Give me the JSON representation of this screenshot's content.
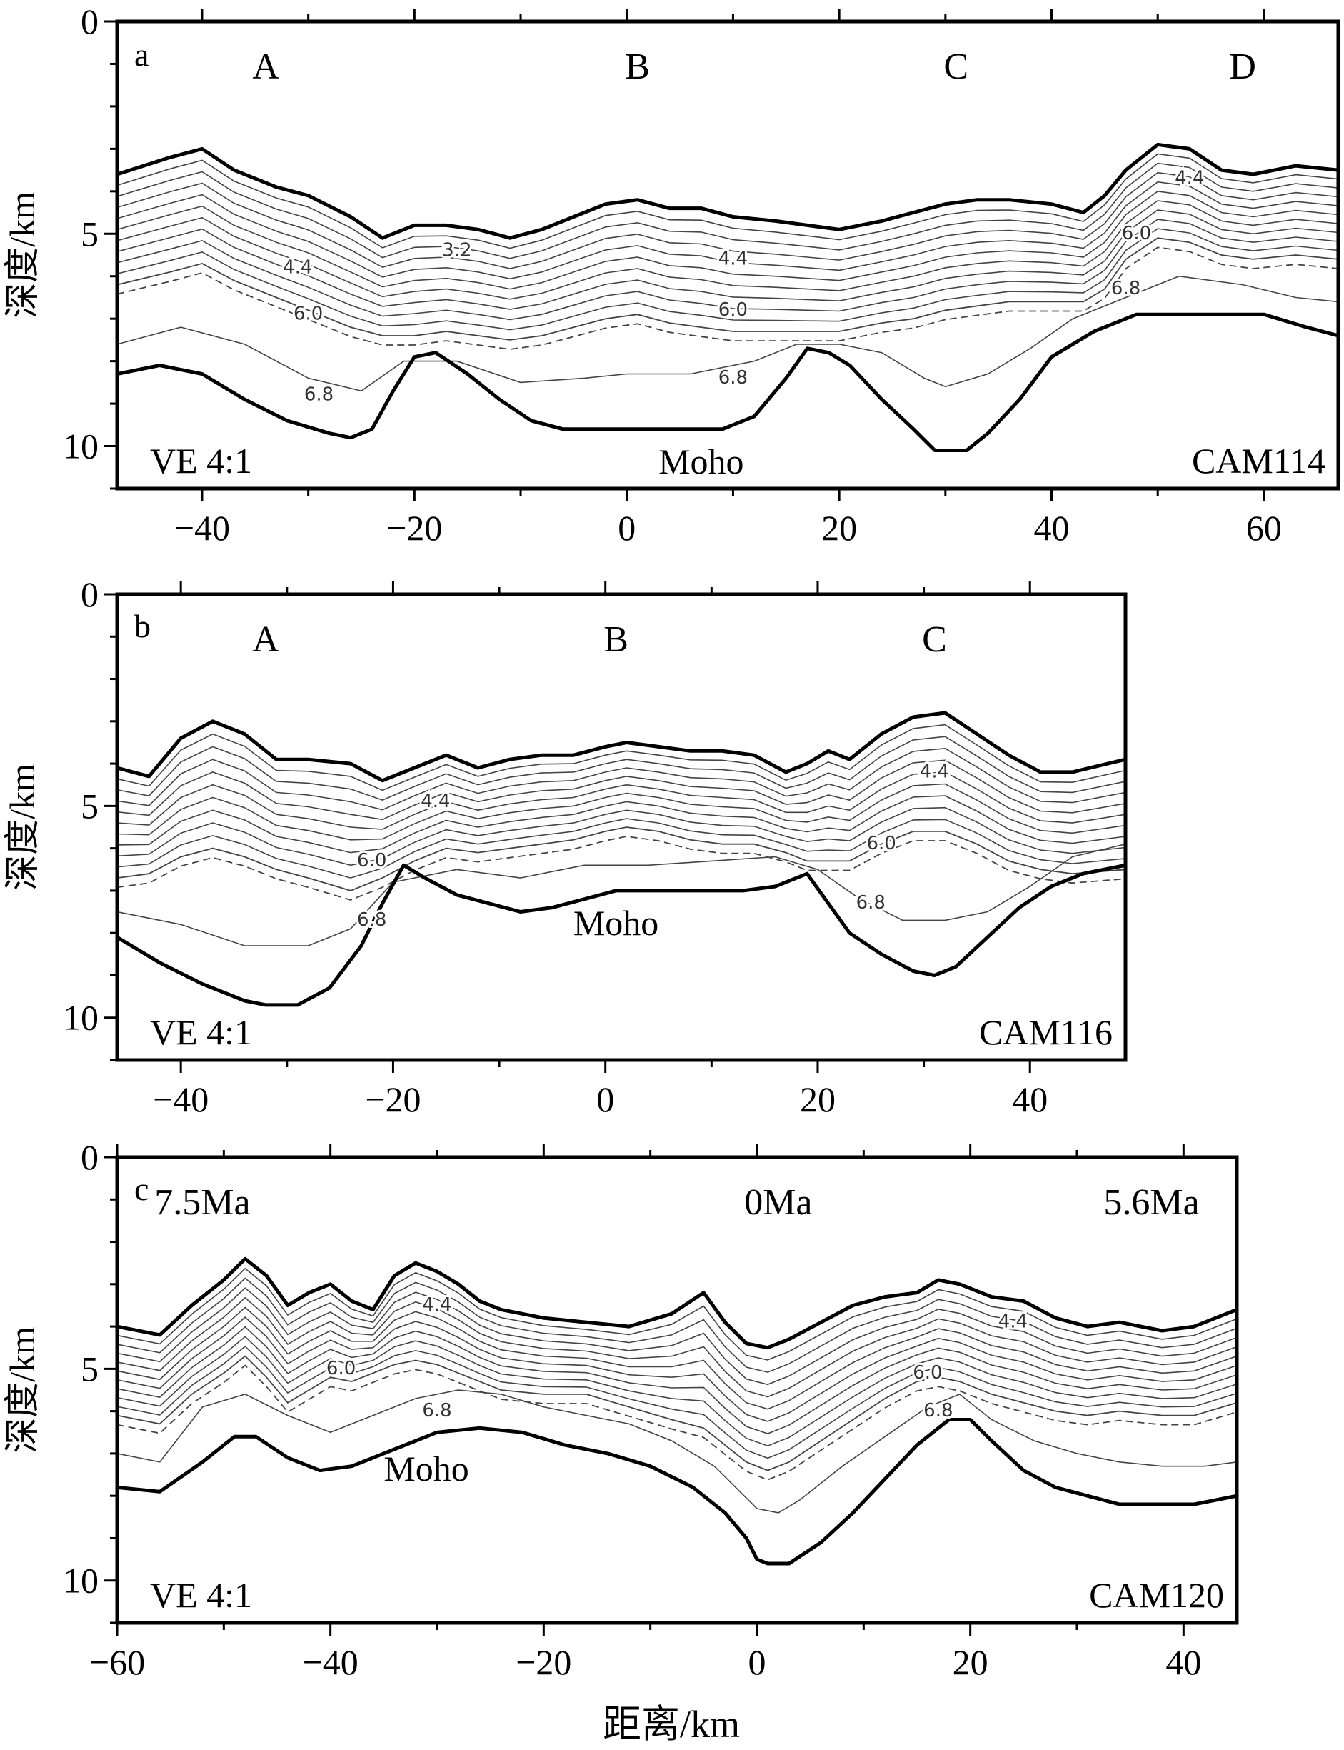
{
  "figure": {
    "ylabel": "深度/km",
    "xlabel": "距离/km"
  },
  "colors": {
    "line": "#000000",
    "contour": "#444444"
  },
  "chart_data": [
    {
      "type": "line",
      "panel": "a",
      "profile": "CAM114",
      "ve_label": "VE 4:1",
      "moho_label": "Moho",
      "xlim": [
        -48,
        67
      ],
      "ylim": [
        0,
        11
      ],
      "y_inverted": true,
      "xticks": [
        -40,
        -20,
        0,
        20,
        40,
        60
      ],
      "yticks": [
        0,
        5,
        10
      ],
      "segment_labels": [
        {
          "text": "A",
          "x": -34
        },
        {
          "text": "B",
          "x": 1
        },
        {
          "text": "C",
          "x": 31
        },
        {
          "text": "D",
          "x": 58
        }
      ],
      "seafloor": {
        "x": [
          -48,
          -43,
          -40,
          -37,
          -33,
          -30,
          -26,
          -23,
          -20,
          -17,
          -14,
          -11,
          -8,
          -5,
          -2,
          1,
          4,
          7,
          10,
          14,
          17,
          20,
          24,
          27,
          30,
          33,
          36,
          40,
          43,
          45,
          47,
          50,
          53,
          56,
          59,
          63,
          67
        ],
        "y": [
          3.6,
          3.2,
          3.0,
          3.5,
          3.9,
          4.1,
          4.6,
          5.1,
          4.8,
          4.8,
          4.9,
          5.1,
          4.9,
          4.6,
          4.3,
          4.2,
          4.4,
          4.4,
          4.6,
          4.7,
          4.8,
          4.9,
          4.7,
          4.5,
          4.3,
          4.2,
          4.2,
          4.3,
          4.5,
          4.1,
          3.5,
          2.9,
          3.0,
          3.5,
          3.6,
          3.4,
          3.5
        ]
      },
      "layer_base": {
        "x": [
          -48,
          -43,
          -40,
          -37,
          -33,
          -30,
          -26,
          -23,
          -20,
          -17,
          -14,
          -11,
          -8,
          -5,
          -2,
          1,
          4,
          7,
          10,
          14,
          17,
          20,
          24,
          27,
          30,
          33,
          36,
          40,
          43,
          45,
          47,
          50,
          53,
          56,
          59,
          63,
          67
        ],
        "y": [
          6.2,
          5.9,
          5.7,
          6.1,
          6.5,
          6.8,
          7.2,
          7.4,
          7.4,
          7.3,
          7.4,
          7.5,
          7.4,
          7.2,
          7.0,
          6.9,
          7.1,
          7.2,
          7.3,
          7.3,
          7.3,
          7.3,
          7.1,
          7.0,
          6.8,
          6.7,
          6.6,
          6.6,
          6.6,
          6.3,
          5.6,
          5.1,
          5.2,
          5.5,
          5.6,
          5.5,
          5.6
        ]
      },
      "contour_6_8": {
        "x": [
          -48,
          -42,
          -36,
          -30,
          -25,
          -21,
          -16,
          -10,
          -4,
          0,
          6,
          12,
          16,
          20,
          24,
          28,
          30,
          34,
          38,
          42,
          46,
          52,
          58,
          63,
          67
        ],
        "y": [
          7.6,
          7.2,
          7.6,
          8.4,
          8.7,
          8.0,
          8.0,
          8.5,
          8.4,
          8.3,
          8.3,
          8.0,
          7.6,
          7.6,
          7.8,
          8.4,
          8.6,
          8.3,
          7.7,
          7.0,
          6.6,
          6.0,
          6.2,
          6.5,
          6.6
        ]
      },
      "moho": {
        "x": [
          -48,
          -44,
          -40,
          -36,
          -32,
          -28,
          -26,
          -24,
          -22,
          -20,
          -18,
          -15,
          -12,
          -9,
          -6,
          -3,
          0,
          3,
          6,
          9,
          12,
          15,
          17,
          19,
          21,
          24,
          27,
          29,
          32,
          34,
          37,
          40,
          44,
          48,
          52,
          56,
          60,
          64,
          67
        ],
        "y": [
          8.3,
          8.1,
          8.3,
          8.9,
          9.4,
          9.7,
          9.8,
          9.6,
          8.7,
          7.9,
          7.8,
          8.3,
          8.9,
          9.4,
          9.6,
          9.6,
          9.6,
          9.6,
          9.6,
          9.6,
          9.3,
          8.4,
          7.7,
          7.8,
          8.1,
          8.9,
          9.6,
          10.1,
          10.1,
          9.7,
          8.9,
          7.9,
          7.3,
          6.9,
          6.9,
          6.9,
          6.9,
          7.2,
          7.4
        ]
      },
      "contour_labels": [
        {
          "text": "3.2",
          "x": -16,
          "y": 5.4
        },
        {
          "text": "4.4",
          "x": -31,
          "y": 5.8
        },
        {
          "text": "4.4",
          "x": 10,
          "y": 5.6
        },
        {
          "text": "4.4",
          "x": 53,
          "y": 3.7
        },
        {
          "text": "6.0",
          "x": -30,
          "y": 6.9
        },
        {
          "text": "6.0",
          "x": 10,
          "y": 6.8
        },
        {
          "text": "6.0",
          "x": 48,
          "y": 5.0
        },
        {
          "text": "6.8",
          "x": -29,
          "y": 8.8
        },
        {
          "text": "6.8",
          "x": 10,
          "y": 8.4
        },
        {
          "text": "6.8",
          "x": 47,
          "y": 6.3
        }
      ]
    },
    {
      "type": "line",
      "panel": "b",
      "profile": "CAM116",
      "ve_label": "VE 4:1",
      "moho_label": "Moho",
      "xlim": [
        -46,
        49
      ],
      "ylim": [
        0,
        11
      ],
      "y_inverted": true,
      "xticks": [
        -40,
        -20,
        0,
        20,
        40
      ],
      "yticks": [
        0,
        5,
        10
      ],
      "segment_labels": [
        {
          "text": "A",
          "x": -32
        },
        {
          "text": "B",
          "x": 1
        },
        {
          "text": "C",
          "x": 31
        }
      ],
      "seafloor": {
        "x": [
          -46,
          -43,
          -40,
          -37,
          -34,
          -31,
          -28,
          -24,
          -21,
          -18,
          -15,
          -12,
          -9,
          -6,
          -3,
          0,
          2,
          5,
          8,
          11,
          14,
          17,
          19,
          21,
          23,
          26,
          29,
          32,
          35,
          38,
          41,
          44,
          49
        ],
        "y": [
          4.1,
          4.3,
          3.4,
          3.0,
          3.3,
          3.9,
          3.9,
          4.0,
          4.4,
          4.1,
          3.8,
          4.1,
          3.9,
          3.8,
          3.8,
          3.6,
          3.5,
          3.6,
          3.7,
          3.7,
          3.8,
          4.2,
          4.0,
          3.7,
          3.9,
          3.3,
          2.9,
          2.8,
          3.3,
          3.8,
          4.2,
          4.2,
          3.9
        ]
      },
      "layer_base": {
        "x": [
          -46,
          -43,
          -40,
          -37,
          -34,
          -31,
          -28,
          -24,
          -21,
          -18,
          -15,
          -12,
          -9,
          -6,
          -3,
          0,
          2,
          5,
          8,
          11,
          14,
          17,
          19,
          21,
          23,
          26,
          29,
          32,
          35,
          38,
          41,
          44,
          49
        ],
        "y": [
          6.7,
          6.6,
          6.2,
          6.0,
          6.2,
          6.5,
          6.7,
          7.0,
          6.7,
          6.3,
          6.0,
          6.1,
          6.0,
          5.9,
          5.8,
          5.6,
          5.5,
          5.6,
          5.8,
          5.9,
          5.9,
          6.1,
          6.3,
          6.3,
          6.3,
          5.9,
          5.6,
          5.6,
          5.9,
          6.3,
          6.5,
          6.6,
          6.5
        ]
      },
      "contour_6_8": {
        "x": [
          -46,
          -40,
          -34,
          -28,
          -24,
          -20,
          -14,
          -8,
          -2,
          4,
          10,
          16,
          20,
          24,
          28,
          32,
          36,
          40,
          44,
          49
        ],
        "y": [
          7.5,
          7.8,
          8.3,
          8.3,
          7.9,
          6.8,
          6.5,
          6.7,
          6.4,
          6.4,
          6.3,
          6.2,
          6.5,
          7.2,
          7.7,
          7.7,
          7.5,
          6.9,
          6.2,
          5.9
        ]
      },
      "moho": {
        "x": [
          -46,
          -42,
          -38,
          -34,
          -32,
          -29,
          -26,
          -23,
          -21,
          -19,
          -17,
          -14,
          -11,
          -8,
          -5,
          -2,
          1,
          4,
          7,
          10,
          13,
          16,
          19,
          21,
          23,
          26,
          29,
          31,
          33,
          36,
          39,
          42,
          45,
          49
        ],
        "y": [
          8.1,
          8.7,
          9.2,
          9.6,
          9.7,
          9.7,
          9.3,
          8.3,
          7.3,
          6.4,
          6.7,
          7.1,
          7.3,
          7.5,
          7.4,
          7.2,
          7.0,
          7.0,
          7.0,
          7.0,
          7.0,
          6.9,
          6.6,
          7.3,
          8.0,
          8.5,
          8.9,
          9.0,
          8.8,
          8.1,
          7.4,
          6.9,
          6.6,
          6.4
        ]
      },
      "contour_labels": [
        {
          "text": "4.4",
          "x": -16,
          "y": 4.9
        },
        {
          "text": "4.4",
          "x": 31,
          "y": 4.2
        },
        {
          "text": "6.0",
          "x": -22,
          "y": 6.3
        },
        {
          "text": "6.0",
          "x": 26,
          "y": 5.9
        },
        {
          "text": "6.8",
          "x": -22,
          "y": 7.7
        },
        {
          "text": "6.8",
          "x": 25,
          "y": 7.3
        }
      ]
    },
    {
      "type": "line",
      "panel": "c",
      "profile": "CAM120",
      "ve_label": "VE 4:1",
      "moho_label": "Moho",
      "xlim": [
        -60,
        45
      ],
      "ylim": [
        0,
        11
      ],
      "y_inverted": true,
      "xticks": [
        -60,
        -40,
        -20,
        0,
        20,
        40
      ],
      "yticks": [
        0,
        5,
        10
      ],
      "xlabel": "距离/km",
      "segment_labels": [
        {
          "text": "7.5Ma",
          "x": -52
        },
        {
          "text": "0Ma",
          "x": 2
        },
        {
          "text": "5.6Ma",
          "x": 37
        }
      ],
      "seafloor": {
        "x": [
          -60,
          -56,
          -53,
          -50,
          -48,
          -46,
          -44,
          -42,
          -40,
          -38,
          -36,
          -34,
          -32,
          -30,
          -28,
          -26,
          -24,
          -20,
          -16,
          -12,
          -8,
          -5,
          -3,
          -1,
          1,
          3,
          6,
          9,
          12,
          15,
          17,
          19,
          22,
          25,
          28,
          31,
          34,
          38,
          41,
          45
        ],
        "y": [
          4.0,
          4.2,
          3.5,
          2.9,
          2.4,
          2.8,
          3.5,
          3.2,
          3.0,
          3.4,
          3.6,
          2.8,
          2.5,
          2.7,
          3.0,
          3.4,
          3.6,
          3.8,
          3.9,
          4.0,
          3.7,
          3.2,
          3.9,
          4.4,
          4.5,
          4.3,
          3.9,
          3.5,
          3.3,
          3.2,
          2.9,
          3.0,
          3.3,
          3.4,
          3.8,
          4.0,
          3.9,
          4.1,
          4.0,
          3.6
        ]
      },
      "layer_base": {
        "x": [
          -60,
          -56,
          -53,
          -50,
          -48,
          -46,
          -44,
          -42,
          -40,
          -38,
          -36,
          -34,
          -32,
          -30,
          -28,
          -26,
          -24,
          -20,
          -16,
          -12,
          -8,
          -5,
          -3,
          -1,
          1,
          3,
          6,
          9,
          12,
          15,
          17,
          19,
          22,
          25,
          28,
          31,
          34,
          38,
          41,
          45
        ],
        "y": [
          6.1,
          6.3,
          5.6,
          5.1,
          4.7,
          5.2,
          5.8,
          5.5,
          5.2,
          5.3,
          5.1,
          4.9,
          4.8,
          4.9,
          5.1,
          5.3,
          5.5,
          5.6,
          5.6,
          5.9,
          6.2,
          6.4,
          6.8,
          7.2,
          7.4,
          7.2,
          6.7,
          6.2,
          5.7,
          5.3,
          5.2,
          5.3,
          5.6,
          5.8,
          6.0,
          6.1,
          6.0,
          6.1,
          6.1,
          5.8
        ]
      },
      "contour_6_8": {
        "x": [
          -60,
          -56,
          -52,
          -48,
          -44,
          -40,
          -36,
          -32,
          -28,
          -24,
          -20,
          -16,
          -12,
          -8,
          -4,
          -2,
          0,
          2,
          4,
          8,
          12,
          16,
          19,
          22,
          26,
          30,
          34,
          38,
          42,
          45
        ],
        "y": [
          7.0,
          7.2,
          5.9,
          5.6,
          6.1,
          6.5,
          6.1,
          5.7,
          5.5,
          5.6,
          5.9,
          6.1,
          6.3,
          6.7,
          7.3,
          7.8,
          8.3,
          8.4,
          8.1,
          7.3,
          6.6,
          5.9,
          5.6,
          6.2,
          6.7,
          7.0,
          7.2,
          7.3,
          7.3,
          7.2
        ]
      },
      "moho": {
        "x": [
          -60,
          -56,
          -52,
          -49,
          -47,
          -44,
          -41,
          -38,
          -34,
          -30,
          -26,
          -22,
          -18,
          -14,
          -10,
          -6,
          -3,
          -1,
          0,
          1,
          3,
          6,
          9,
          12,
          15,
          18,
          20,
          22,
          25,
          28,
          31,
          34,
          38,
          41,
          45
        ],
        "y": [
          7.8,
          7.9,
          7.2,
          6.6,
          6.6,
          7.1,
          7.4,
          7.3,
          6.9,
          6.5,
          6.4,
          6.5,
          6.8,
          7.0,
          7.3,
          7.8,
          8.4,
          9.0,
          9.5,
          9.6,
          9.6,
          9.1,
          8.4,
          7.6,
          6.8,
          6.2,
          6.2,
          6.7,
          7.4,
          7.8,
          8.0,
          8.2,
          8.2,
          8.2,
          8.0
        ]
      },
      "contour_labels": [
        {
          "text": "4.4",
          "x": -30,
          "y": 3.5
        },
        {
          "text": "4.4",
          "x": 24,
          "y": 3.9
        },
        {
          "text": "6.0",
          "x": -39,
          "y": 5.0
        },
        {
          "text": "6.0",
          "x": 16,
          "y": 5.1
        },
        {
          "text": "6.8",
          "x": -30,
          "y": 6.0
        },
        {
          "text": "6.8",
          "x": 17,
          "y": 6.0
        }
      ]
    }
  ]
}
